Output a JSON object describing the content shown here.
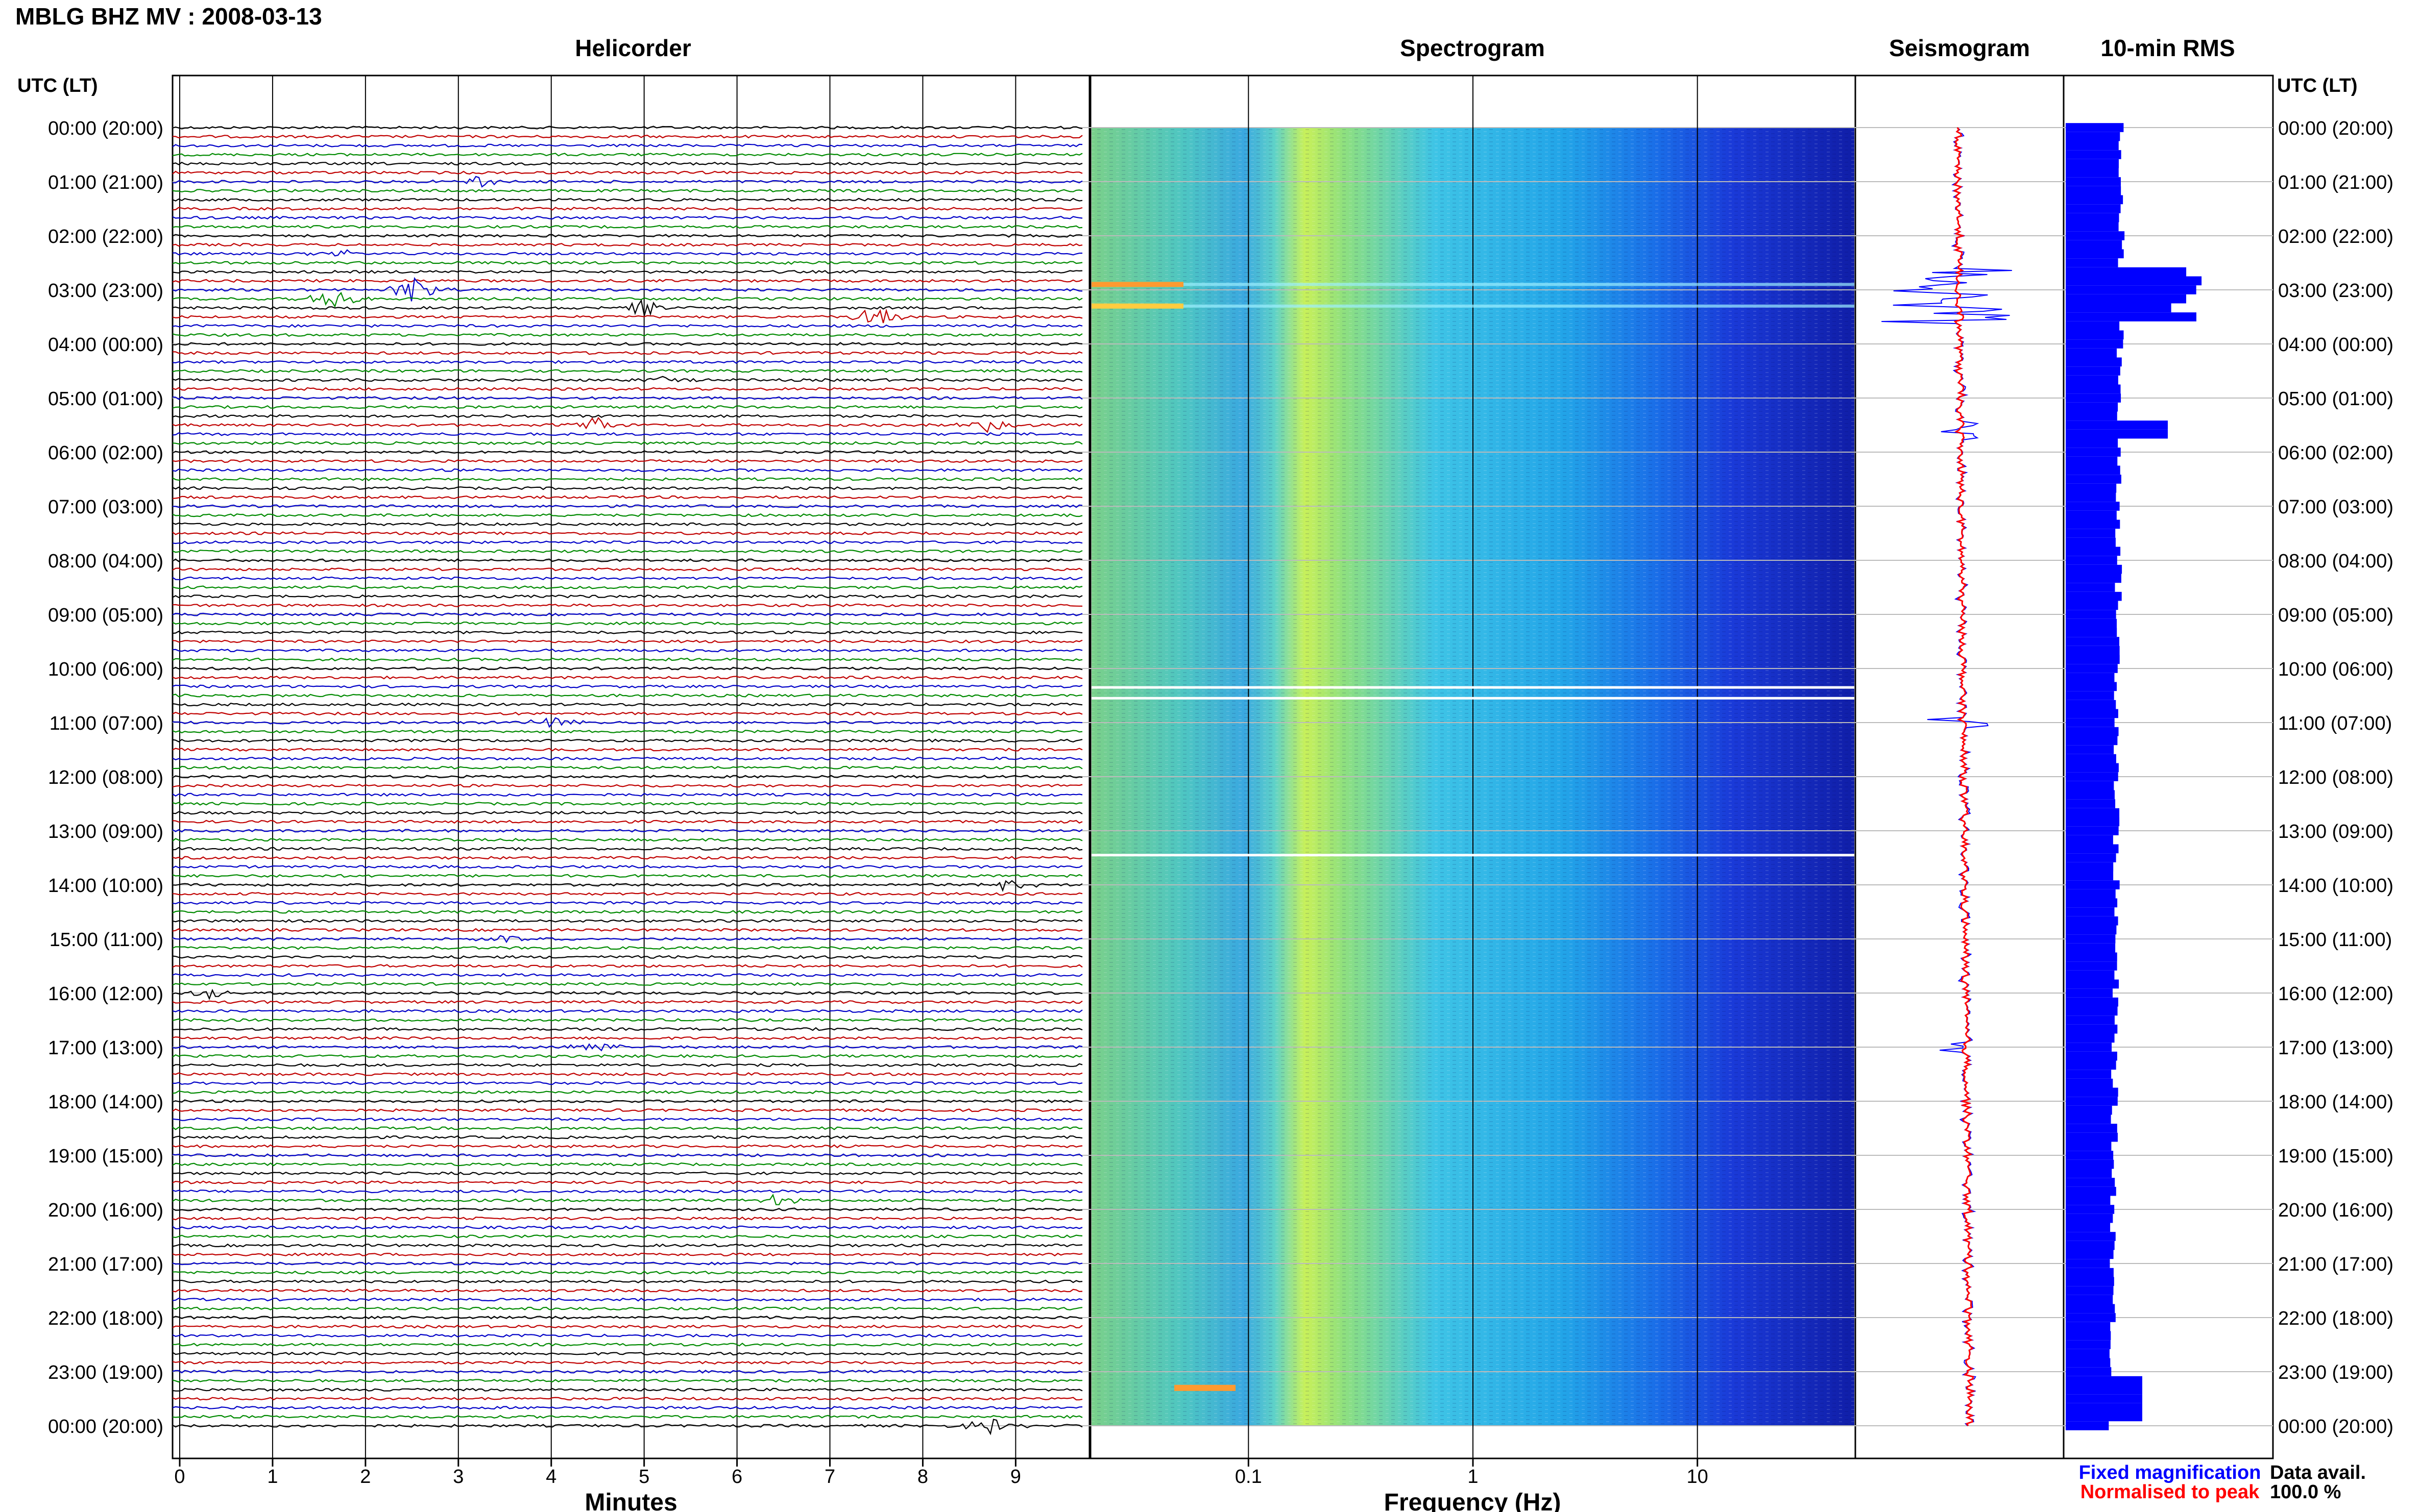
{
  "header": {
    "station_title": "MBLG BHZ MV : 2008-03-13"
  },
  "panels": {
    "helicorder_title": "Helicorder",
    "spectrogram_title": "Spectrogram",
    "seismogram_title": "Seismogram",
    "rms_title": "10-min RMS"
  },
  "axes": {
    "left_header": "UTC (LT)",
    "right_header": "UTC (LT)",
    "helicorder_xlabel": "Minutes",
    "spectrogram_xlabel": "Frequency (Hz)"
  },
  "time_labels": [
    "00:00 (20:00)",
    "01:00 (21:00)",
    "02:00 (22:00)",
    "03:00 (23:00)",
    "04:00 (00:00)",
    "05:00 (01:00)",
    "06:00 (02:00)",
    "07:00 (03:00)",
    "08:00 (04:00)",
    "09:00 (05:00)",
    "10:00 (06:00)",
    "11:00 (07:00)",
    "12:00 (08:00)",
    "13:00 (09:00)",
    "14:00 (10:00)",
    "15:00 (11:00)",
    "16:00 (12:00)",
    "17:00 (13:00)",
    "18:00 (14:00)",
    "19:00 (15:00)",
    "20:00 (16:00)",
    "21:00 (17:00)",
    "22:00 (18:00)",
    "23:00 (19:00)",
    "00:00 (20:00)"
  ],
  "legend": {
    "fixed_label": "Fixed magnification",
    "normalised_label": "Normalised to peak",
    "data_avail_label": "Data avail.",
    "data_avail_value": "100.0 %"
  },
  "colors": {
    "trace_cycle": [
      "#000000",
      "#c00000",
      "#0000c8",
      "#008a00"
    ],
    "fixed_mag": "#0000ff",
    "normalised": "#ff0000",
    "rms_bar": "#0000ff"
  },
  "chart_data": [
    {
      "type": "line",
      "panel": "Helicorder",
      "title": "Helicorder",
      "xlabel": "Minutes",
      "xticks": [
        "0",
        "1",
        "2",
        "3",
        "4",
        "5",
        "6",
        "7",
        "8",
        "9"
      ],
      "xlim": [
        0,
        10
      ],
      "rows_per_hour": 6,
      "row_minutes": 10,
      "events": [
        {
          "time": "01:00",
          "minute": 3.2,
          "amp": 0.6
        },
        {
          "time": "02:20",
          "minute": 1.8,
          "amp": 0.5
        },
        {
          "time": "03:00",
          "minute": 2.5,
          "amp": 1.5
        },
        {
          "time": "03:10",
          "minute": 1.6,
          "amp": 1.3
        },
        {
          "time": "03:20",
          "minute": 5.0,
          "amp": 1.0
        },
        {
          "time": "03:30",
          "minute": 7.5,
          "amp": 1.2
        },
        {
          "time": "04:40",
          "minute": 5.3,
          "amp": 0.6
        },
        {
          "time": "05:30",
          "minute": 4.5,
          "amp": 0.8
        },
        {
          "time": "05:30",
          "minute": 8.7,
          "amp": 0.7
        },
        {
          "time": "11:00",
          "minute": 4.0,
          "amp": 0.7
        },
        {
          "time": "14:00",
          "minute": 8.9,
          "amp": 0.6
        },
        {
          "time": "15:00",
          "minute": 3.5,
          "amp": 0.6
        },
        {
          "time": "16:00",
          "minute": 0.3,
          "amp": 0.7
        },
        {
          "time": "17:00",
          "minute": 4.5,
          "amp": 0.7
        },
        {
          "time": "19:50",
          "minute": 6.4,
          "amp": 0.6
        },
        {
          "time": "00:00",
          "minute": 8.7,
          "amp": 0.9
        }
      ]
    },
    {
      "type": "heatmap",
      "panel": "Spectrogram",
      "title": "Spectrogram",
      "xlabel": "Frequency (Hz)",
      "xscale": "log",
      "xlim": [
        0.02,
        50
      ],
      "xticks": [
        "0.1",
        "1",
        "10"
      ],
      "colormap": "jet"
    },
    {
      "type": "line",
      "panel": "Seismogram",
      "title": "Seismogram",
      "series": [
        {
          "name": "Fixed magnification",
          "color": "#0000ff"
        },
        {
          "name": "Normalised to peak",
          "color": "#ff0000"
        }
      ]
    },
    {
      "type": "bar",
      "panel": "10-min RMS",
      "title": "10-min RMS",
      "orientation": "horizontal",
      "bins": 144,
      "data_avail": "100.0 %"
    }
  ]
}
